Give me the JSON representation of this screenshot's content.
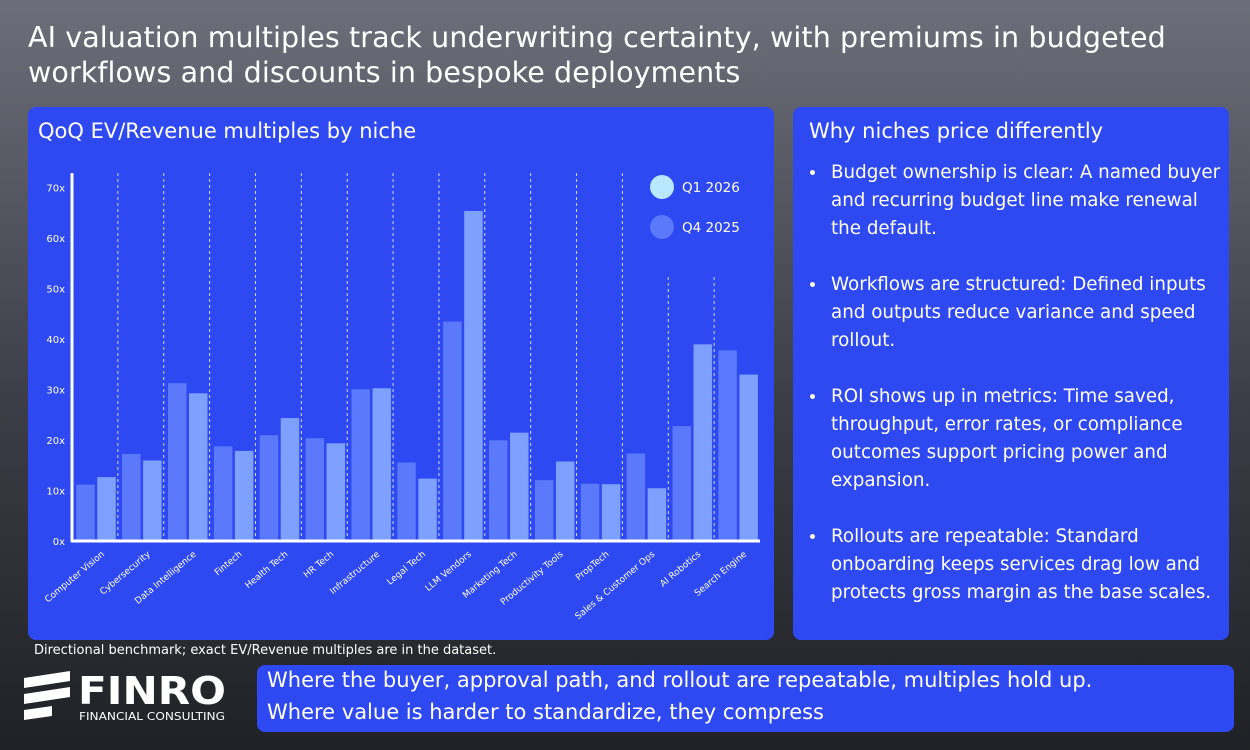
{
  "title": "AI valuation multiples track underwriting certainty, with premiums in budgeted workflows and discounts in bespoke deployments",
  "chart_panel": {
    "title": "QoQ EV/Revenue multiples by niche"
  },
  "chart_data": {
    "type": "bar",
    "title": "QoQ EV/Revenue multiples by niche",
    "categories": [
      "Computer Vision",
      "Cybersecurity",
      "Data Intelligence",
      "Fintech",
      "Health Tech",
      "HR Tech",
      "Infrastructure",
      "Legal Tech",
      "LLM Vendors",
      "Marketing Tech",
      "Productivity Tools",
      "PropTech",
      "Sales & Customer Ops",
      "AI Robotics",
      "Search Engine"
    ],
    "series": [
      {
        "name": "Q4 2025",
        "color": "#5a79fb",
        "values": [
          11.2,
          17.3,
          31.3,
          18.8,
          21.0,
          20.4,
          30.1,
          15.6,
          43.5,
          20.0,
          12.1,
          11.4,
          17.4,
          22.8,
          37.8
        ]
      },
      {
        "name": "Q1 2026",
        "color": "#7ea0ff",
        "values": [
          12.7,
          16.0,
          29.3,
          17.9,
          24.4,
          19.4,
          30.3,
          12.4,
          65.4,
          21.5,
          15.8,
          11.3,
          10.5,
          39.0,
          33.0
        ]
      }
    ],
    "legend": [
      {
        "name": "Q1 2026",
        "color": "#b8e8ff"
      },
      {
        "name": "Q4 2025",
        "color": "#5a79fb"
      }
    ],
    "y_ticks": [
      "0x",
      "10x",
      "20x",
      "30x",
      "40x",
      "50x",
      "60x",
      "70x"
    ],
    "ylim": [
      0,
      72
    ],
    "legend_position": "top-right",
    "grid": "vertical dashed separators"
  },
  "reasons_panel": {
    "title": "Why niches price differently",
    "items": [
      "Budget ownership is clear: A named buyer and recurring budget line make renewal the default.",
      "Workflows are structured: Defined inputs and outputs reduce variance and speed rollout.",
      "ROI shows up in metrics: Time saved, throughput, error rates, or compliance outcomes support pricing power and expansion.",
      "Rollouts are repeatable: Standard onboarding keeps services drag low and protects gross margin as the base scales."
    ]
  },
  "footnote": "Directional benchmark; exact EV/Revenue multiples are in the dataset.",
  "logo": {
    "name": "FINRO",
    "tagline": "FINANCIAL CONSULTING"
  },
  "callout": {
    "line1": "Where the buyer, approval path, and rollout are repeatable, multiples hold up.",
    "line2": "Where value is harder to standardize, they compress"
  }
}
